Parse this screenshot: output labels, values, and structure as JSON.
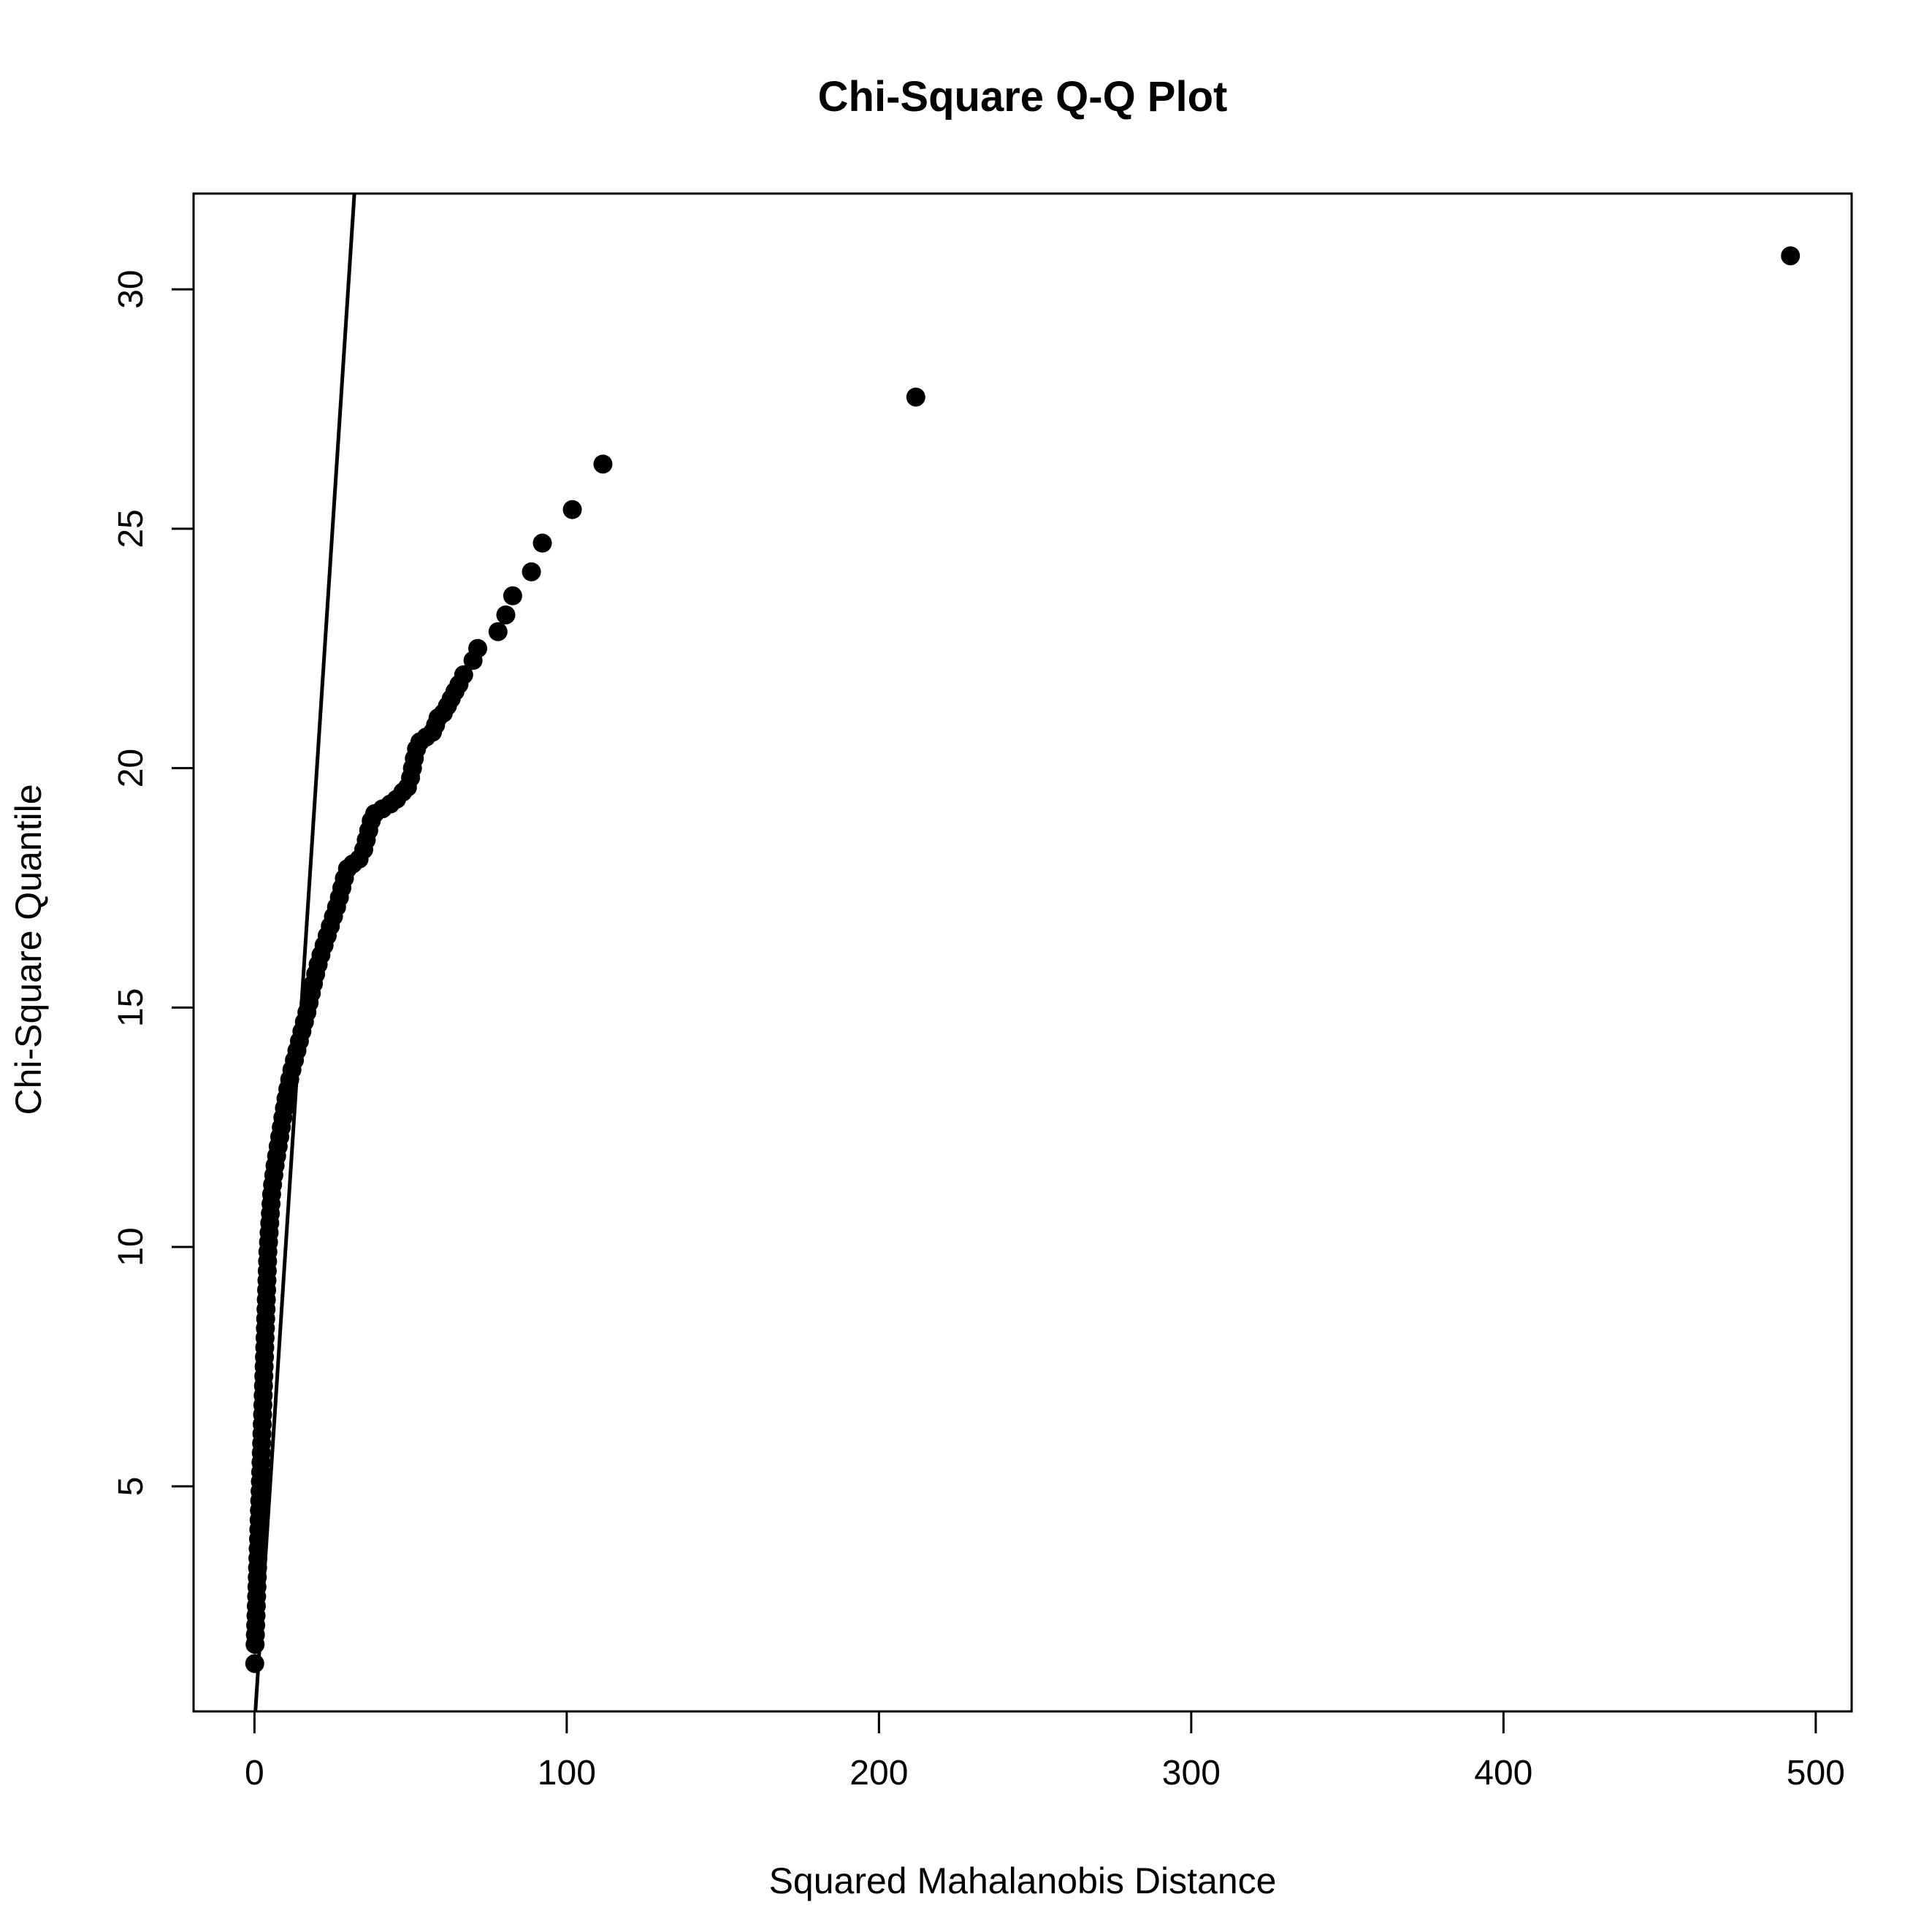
{
  "chart_data": {
    "type": "scatter",
    "title": "Chi-Square Q-Q Plot",
    "xlabel": "Squared Mahalanobis Distance",
    "ylabel": "Chi-Square Quantile",
    "xlim": [
      -19.5,
      511.5
    ],
    "ylim": [
      0.3,
      32.0
    ],
    "x_ticks": [
      0,
      100,
      200,
      300,
      400,
      500
    ],
    "y_ticks": [
      5,
      10,
      15,
      20,
      25,
      30
    ],
    "grid": false,
    "legend": "none",
    "reference_line": {
      "intercept": 0,
      "slope": 1
    },
    "point_color": "#000000",
    "series": [
      {
        "points": [
          [
            0.1,
            1.3
          ],
          [
            0.2,
            1.7
          ],
          [
            0.3,
            1.9
          ],
          [
            0.4,
            2.1
          ],
          [
            0.5,
            2.3
          ],
          [
            0.6,
            2.5
          ],
          [
            0.7,
            2.7
          ],
          [
            0.8,
            2.9
          ],
          [
            0.9,
            3.1
          ],
          [
            1.0,
            3.3
          ],
          [
            1.1,
            3.5
          ],
          [
            1.2,
            3.7
          ],
          [
            1.3,
            3.9
          ],
          [
            1.4,
            4.1
          ],
          [
            1.5,
            4.3
          ],
          [
            1.6,
            4.5
          ],
          [
            1.7,
            4.7
          ],
          [
            1.8,
            4.9
          ],
          [
            1.9,
            5.1
          ],
          [
            2.0,
            5.3
          ],
          [
            2.1,
            5.5
          ],
          [
            2.2,
            5.7
          ],
          [
            2.3,
            5.9
          ],
          [
            2.4,
            6.1
          ],
          [
            2.5,
            6.3
          ],
          [
            2.6,
            6.5
          ],
          [
            2.7,
            6.7
          ],
          [
            2.8,
            6.9
          ],
          [
            2.9,
            7.1
          ],
          [
            3.0,
            7.3
          ],
          [
            3.1,
            7.5
          ],
          [
            3.2,
            7.7
          ],
          [
            3.3,
            7.9
          ],
          [
            3.4,
            8.1
          ],
          [
            3.5,
            8.3
          ],
          [
            3.6,
            8.5
          ],
          [
            3.7,
            8.7
          ],
          [
            3.8,
            8.9
          ],
          [
            3.9,
            9.1
          ],
          [
            4.0,
            9.3
          ],
          [
            4.1,
            9.5
          ],
          [
            4.2,
            9.7
          ],
          [
            4.3,
            9.9
          ],
          [
            4.5,
            10.1
          ],
          [
            4.7,
            10.3
          ],
          [
            4.9,
            10.5
          ],
          [
            5.1,
            10.7
          ],
          [
            5.3,
            10.9
          ],
          [
            5.5,
            11.1
          ],
          [
            5.8,
            11.3
          ],
          [
            6.2,
            11.5
          ],
          [
            6.6,
            11.7
          ],
          [
            7.1,
            11.9
          ],
          [
            7.6,
            12.1
          ],
          [
            8.1,
            12.3
          ],
          [
            8.6,
            12.5
          ],
          [
            9.1,
            12.7
          ],
          [
            9.6,
            12.9
          ],
          [
            10.1,
            13.1
          ],
          [
            10.7,
            13.3
          ],
          [
            11.3,
            13.5
          ],
          [
            12.0,
            13.7
          ],
          [
            12.8,
            13.9
          ],
          [
            13.6,
            14.1
          ],
          [
            14.4,
            14.3
          ],
          [
            15.2,
            14.5
          ],
          [
            16.0,
            14.7
          ],
          [
            16.8,
            14.9
          ],
          [
            17.5,
            15.1
          ],
          [
            18.2,
            15.3
          ],
          [
            18.9,
            15.5
          ],
          [
            19.6,
            15.7
          ],
          [
            20.4,
            15.9
          ],
          [
            21.3,
            16.1
          ],
          [
            22.3,
            16.3
          ],
          [
            23.3,
            16.5
          ],
          [
            24.3,
            16.7
          ],
          [
            25.3,
            16.9
          ],
          [
            26.3,
            17.1
          ],
          [
            27.2,
            17.3
          ],
          [
            28.0,
            17.5
          ],
          [
            28.8,
            17.7
          ],
          [
            29.8,
            17.9
          ],
          [
            31.5,
            18.0
          ],
          [
            33.5,
            18.1
          ],
          [
            35.0,
            18.3
          ],
          [
            35.8,
            18.5
          ],
          [
            36.6,
            18.7
          ],
          [
            37.4,
            18.9
          ],
          [
            38.5,
            19.05
          ],
          [
            41.0,
            19.15
          ],
          [
            43.5,
            19.25
          ],
          [
            45.5,
            19.35
          ],
          [
            47.5,
            19.5
          ],
          [
            49.0,
            19.6
          ],
          [
            50.0,
            19.8
          ],
          [
            50.6,
            20.0
          ],
          [
            51.2,
            20.2
          ],
          [
            51.9,
            20.4
          ],
          [
            53.0,
            20.55
          ],
          [
            55.0,
            20.65
          ],
          [
            57.0,
            20.75
          ],
          [
            58.0,
            20.9
          ],
          [
            58.8,
            21.05
          ],
          [
            60.5,
            21.15
          ],
          [
            61.8,
            21.3
          ],
          [
            63.0,
            21.45
          ],
          [
            64.2,
            21.6
          ],
          [
            65.5,
            21.75
          ],
          [
            67.0,
            21.95
          ],
          [
            70.0,
            22.25
          ],
          [
            71.5,
            22.5
          ],
          [
            78.0,
            22.85
          ],
          [
            80.5,
            23.2
          ],
          [
            82.7,
            23.6
          ],
          [
            88.7,
            24.1
          ],
          [
            92.2,
            24.7
          ],
          [
            101.8,
            25.4
          ],
          [
            111.6,
            26.35
          ],
          [
            211.8,
            27.75
          ],
          [
            491.9,
            30.7
          ]
        ]
      }
    ]
  }
}
